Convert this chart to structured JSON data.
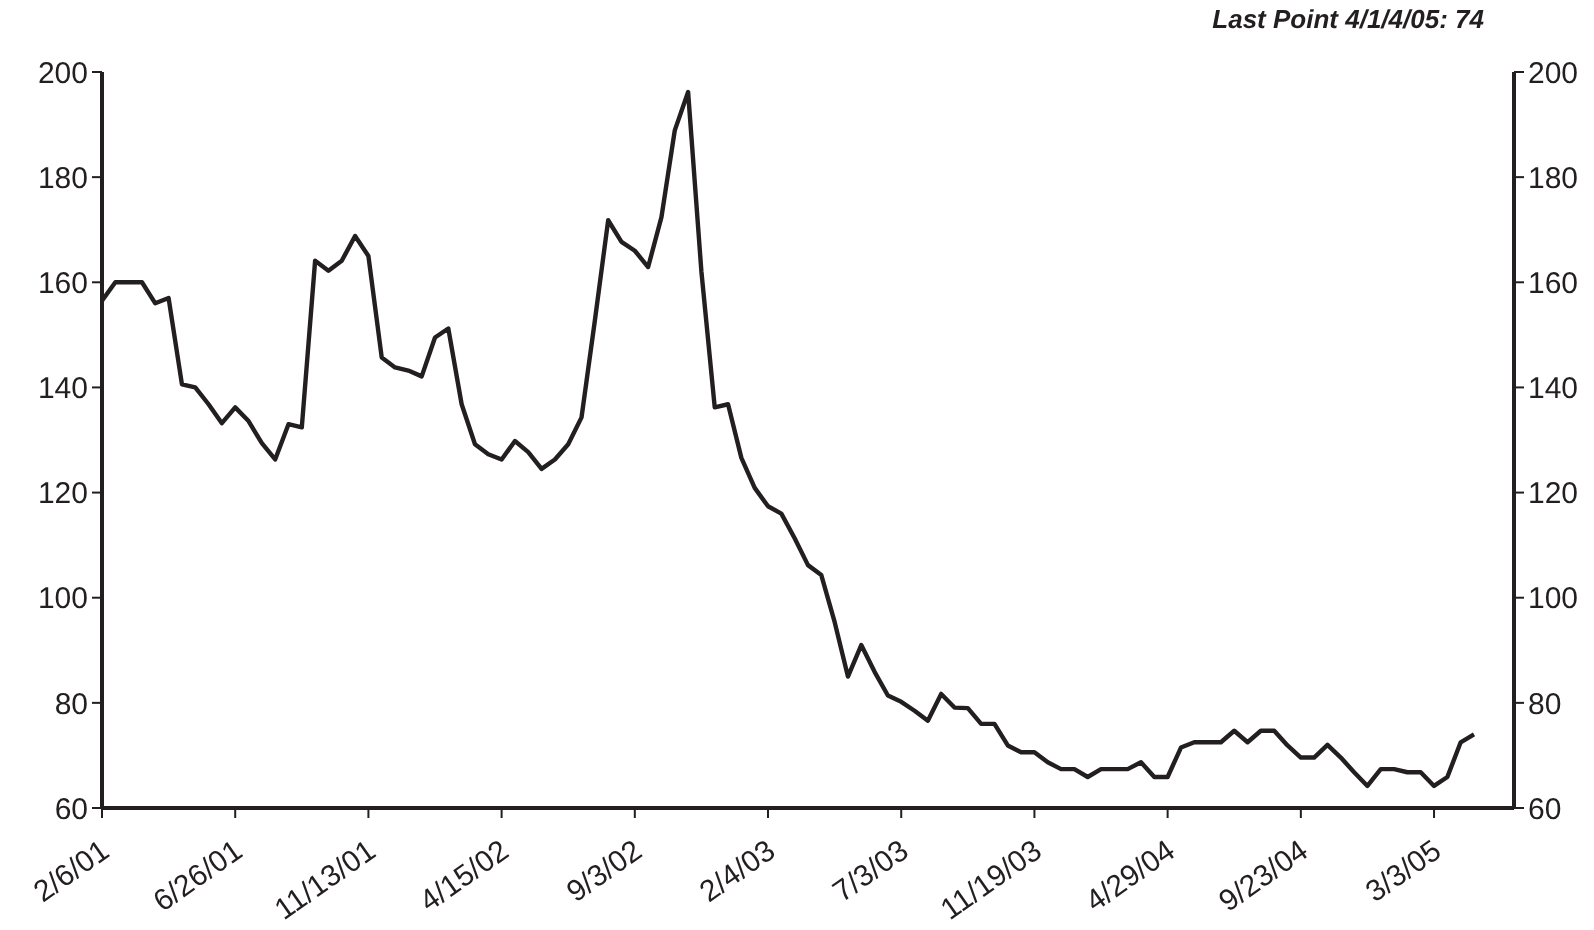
{
  "chart_data": {
    "type": "line",
    "categories": [
      "2/6/01",
      null,
      null,
      null,
      null,
      null,
      null,
      null,
      null,
      null,
      "6/26/01",
      null,
      null,
      null,
      null,
      null,
      null,
      null,
      null,
      null,
      "11/13/01",
      null,
      null,
      null,
      null,
      null,
      null,
      null,
      null,
      null,
      "4/15/02",
      null,
      null,
      null,
      null,
      null,
      null,
      null,
      null,
      null,
      "9/3/02",
      null,
      null,
      null,
      null,
      null,
      null,
      null,
      null,
      null,
      "2/4/03",
      null,
      null,
      null,
      null,
      null,
      null,
      null,
      null,
      null,
      "7/3/03",
      null,
      null,
      null,
      null,
      null,
      null,
      null,
      null,
      null,
      "11/19/03",
      null,
      null,
      null,
      null,
      null,
      null,
      null,
      null,
      null,
      "4/29/04",
      null,
      null,
      null,
      null,
      null,
      null,
      null,
      null,
      null,
      "9/23/04",
      null,
      null,
      null,
      null,
      null,
      null,
      null,
      null,
      null,
      "3/3/05",
      null,
      null,
      null
    ],
    "series": [
      {
        "color": "#231f20",
        "values": [
          156.5,
          160,
          160,
          160,
          156,
          157,
          140.6,
          140,
          136.8,
          133.2,
          136.2,
          133.6,
          129.4,
          126.3,
          133,
          132.4,
          164.1,
          162.2,
          164.1,
          168.8,
          165,
          145.7,
          143.8,
          143.2,
          142.1,
          149.5,
          151.2,
          136.8,
          129.2,
          127.3,
          126.3,
          129.8,
          127.7,
          124.5,
          126.3,
          129.2,
          134.3,
          152.7,
          171.8,
          167.7,
          166,
          162.9,
          172.4,
          188.9,
          196.2,
          162,
          136.2,
          136.8,
          126.6,
          120.9,
          117.4,
          116,
          111.3,
          106.2,
          104.3,
          95.4,
          85,
          91,
          85.9,
          81.4,
          80.2,
          78.5,
          76.6,
          81.7,
          79.1,
          79,
          76,
          76,
          71.9,
          70.6,
          70.6,
          68.7,
          67.4,
          67.4,
          65.9,
          67.4,
          67.4,
          67.4,
          68.7,
          65.9,
          65.9,
          71.5,
          72.5,
          72.5,
          72.5,
          74.7,
          72.5,
          74.7,
          74.7,
          71.9,
          69.6,
          69.6,
          72,
          69.6,
          66.8,
          64.2,
          67.4,
          67.4,
          66.8,
          66.8,
          64.2,
          65.9,
          72.5,
          74
        ]
      }
    ],
    "ylim": [
      60,
      200
    ],
    "yticks": [
      60,
      80,
      100,
      120,
      140,
      160,
      180,
      200
    ],
    "y2lim": [
      60,
      200
    ],
    "y2ticks": [
      60,
      80,
      100,
      120,
      140,
      160,
      180,
      200
    ],
    "annotations": [
      "Last Point 4/1/4/05: 74"
    ],
    "legend": false,
    "grid": false,
    "marker": "none",
    "line_style": "solid"
  }
}
